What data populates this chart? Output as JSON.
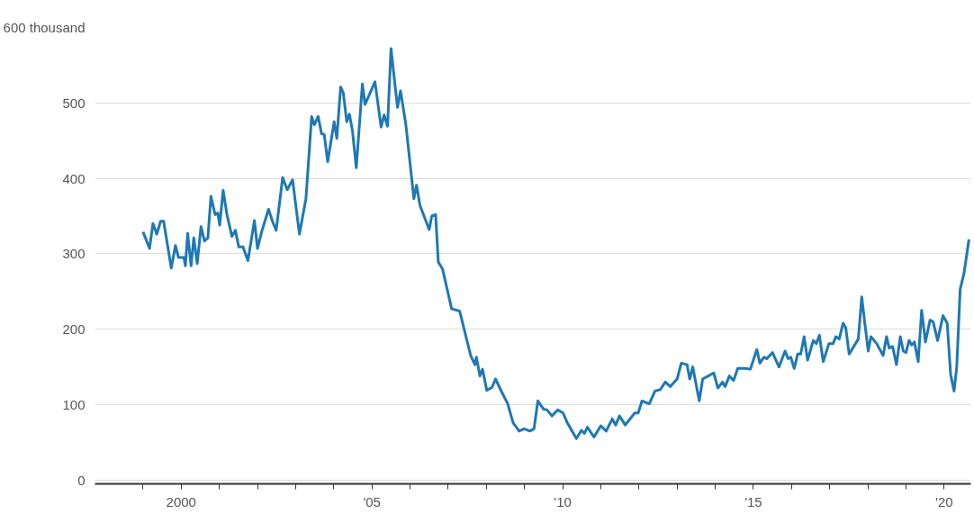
{
  "chart_data": {
    "type": "line",
    "x": [
      1999.0,
      1999.17,
      1999.26,
      1999.36,
      1999.46,
      1999.54,
      1999.74,
      1999.85,
      1999.93,
      2000.07,
      2000.11,
      2000.17,
      2000.26,
      2000.33,
      2000.42,
      2000.52,
      2000.61,
      2000.7,
      2000.78,
      2000.89,
      2000.96,
      2001.01,
      2001.1,
      2001.2,
      2001.33,
      2001.42,
      2001.51,
      2001.62,
      2001.75,
      2001.92,
      2002.0,
      2002.12,
      2002.29,
      2002.4,
      2002.49,
      2002.66,
      2002.78,
      2002.92,
      2003.1,
      2003.27,
      2003.42,
      2003.49,
      2003.59,
      2003.68,
      2003.75,
      2003.84,
      2004.01,
      2004.08,
      2004.18,
      2004.25,
      2004.34,
      2004.41,
      2004.49,
      2004.59,
      2004.75,
      2004.82,
      2005.08,
      2005.24,
      2005.32,
      2005.41,
      2005.5,
      2005.67,
      2005.75,
      2005.89,
      2006.1,
      2006.17,
      2006.26,
      2006.5,
      2006.57,
      2006.67,
      2006.74,
      2006.85,
      2007.09,
      2007.3,
      2007.59,
      2007.7,
      2007.74,
      2007.83,
      2007.9,
      2008.01,
      2008.15,
      2008.24,
      2008.4,
      2008.56,
      2008.7,
      2008.86,
      2008.99,
      2009.14,
      2009.25,
      2009.35,
      2009.5,
      2009.59,
      2009.72,
      2009.87,
      2010.01,
      2010.12,
      2010.36,
      2010.49,
      2010.57,
      2010.65,
      2010.82,
      2011.0,
      2011.14,
      2011.3,
      2011.39,
      2011.49,
      2011.64,
      2011.89,
      2011.98,
      2012.08,
      2012.27,
      2012.42,
      2012.56,
      2012.69,
      2012.82,
      2013.0,
      2013.11,
      2013.26,
      2013.33,
      2013.41,
      2013.58,
      2013.67,
      2013.82,
      2013.96,
      2014.07,
      2014.19,
      2014.26,
      2014.37,
      2014.48,
      2014.59,
      2014.78,
      2014.92,
      2015.09,
      2015.17,
      2015.28,
      2015.35,
      2015.5,
      2015.67,
      2015.83,
      2015.91,
      2015.98,
      2016.07,
      2016.16,
      2016.24,
      2016.33,
      2016.42,
      2016.57,
      2016.65,
      2016.73,
      2016.83,
      2016.98,
      2017.09,
      2017.16,
      2017.25,
      2017.35,
      2017.42,
      2017.51,
      2017.75,
      2017.84,
      2017.91,
      2018.01,
      2018.08,
      2018.23,
      2018.4,
      2018.49,
      2018.56,
      2018.65,
      2018.75,
      2018.85,
      2018.93,
      2019.0,
      2019.08,
      2019.15,
      2019.22,
      2019.32,
      2019.41,
      2019.51,
      2019.63,
      2019.71,
      2019.83,
      2019.97,
      2020.08,
      2020.17,
      2020.26,
      2020.33,
      2020.42,
      2020.52,
      2020.65
    ],
    "series": [
      {
        "color": "#1f78b4",
        "values": [
          329,
          307,
          340,
          326,
          343,
          343,
          281,
          311,
          295,
          295,
          284,
          327,
          284,
          321,
          287,
          336,
          317,
          321,
          376,
          352,
          354,
          338,
          384,
          352,
          323,
          331,
          309,
          309,
          291,
          344,
          307,
          331,
          359,
          342,
          331,
          401,
          385,
          398,
          326,
          373,
          482,
          471,
          482,
          459,
          458,
          422,
          475,
          453,
          521,
          513,
          475,
          485,
          463,
          414,
          525,
          498,
          528,
          468,
          484,
          469,
          572,
          494,
          516,
          471,
          373,
          391,
          364,
          332,
          350,
          352,
          289,
          280,
          227,
          224,
          165,
          153,
          163,
          138,
          147,
          119,
          123,
          134,
          117,
          101,
          76,
          65,
          68,
          65,
          68,
          105,
          94,
          93,
          85,
          93,
          89,
          76,
          55,
          66,
          62,
          70,
          57,
          72,
          65,
          81,
          73,
          85,
          73,
          89,
          89,
          105,
          101,
          118,
          120,
          130,
          124,
          134,
          155,
          153,
          134,
          150,
          105,
          134,
          138,
          142,
          122,
          130,
          124,
          138,
          132,
          148,
          148,
          147,
          173,
          155,
          163,
          161,
          169,
          150,
          171,
          161,
          163,
          148,
          167,
          167,
          190,
          159,
          185,
          181,
          192,
          157,
          181,
          181,
          190,
          187,
          208,
          202,
          167,
          187,
          243,
          212,
          171,
          190,
          181,
          165,
          190,
          175,
          177,
          153,
          190,
          171,
          169,
          185,
          179,
          183,
          157,
          225,
          183,
          212,
          210,
          185,
          218,
          208,
          140,
          118,
          150,
          253,
          274,
          319
        ]
      }
    ],
    "xlim": [
      1997.74,
      2020.7
    ],
    "xticks": [
      {
        "value": 1999,
        "label": null
      },
      {
        "value": 2000,
        "label": "2000"
      },
      {
        "value": 2001,
        "label": null
      },
      {
        "value": 2002,
        "label": null
      },
      {
        "value": 2003,
        "label": null
      },
      {
        "value": 2004,
        "label": null
      },
      {
        "value": 2005,
        "label": "'05"
      },
      {
        "value": 2006,
        "label": null
      },
      {
        "value": 2007,
        "label": null
      },
      {
        "value": 2008,
        "label": null
      },
      {
        "value": 2009,
        "label": null
      },
      {
        "value": 2010,
        "label": "'10"
      },
      {
        "value": 2011,
        "label": null
      },
      {
        "value": 2012,
        "label": null
      },
      {
        "value": 2013,
        "label": null
      },
      {
        "value": 2014,
        "label": null
      },
      {
        "value": 2015,
        "label": "'15"
      },
      {
        "value": 2016,
        "label": null
      },
      {
        "value": 2017,
        "label": null
      },
      {
        "value": 2018,
        "label": null
      },
      {
        "value": 2019,
        "label": null
      },
      {
        "value": 2020,
        "label": "'20"
      }
    ],
    "ylim": [
      -5,
      600
    ],
    "yticks": [
      0,
      100,
      200,
      300,
      400,
      500,
      {
        "value": 600,
        "label": "600 thousand"
      }
    ],
    "grid": "y",
    "line_style": "solid",
    "marker": "none"
  }
}
